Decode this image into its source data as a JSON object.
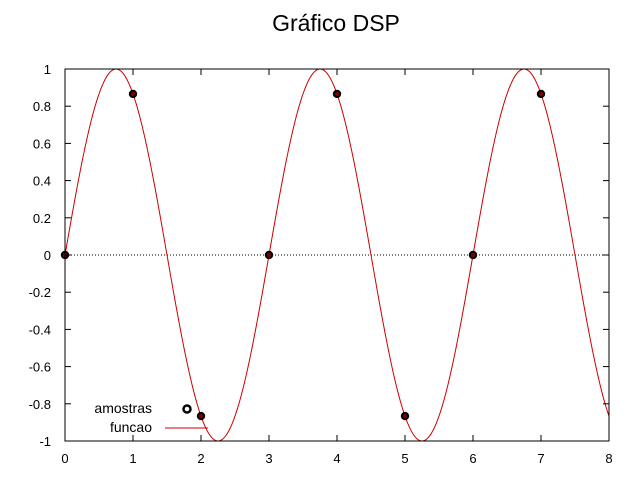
{
  "chart_data": {
    "type": "line",
    "title": "Gráfico DSP",
    "xlabel": "",
    "ylabel": "",
    "xlim": [
      0,
      8
    ],
    "ylim": [
      -1,
      1
    ],
    "x_ticks": [
      "0",
      "1",
      "2",
      "3",
      "4",
      "5",
      "6",
      "7",
      "8"
    ],
    "y_ticks": [
      "1",
      "0.8",
      "0.6",
      "0.4",
      "0.2",
      "0",
      "-0.2",
      "-0.4",
      "-0.6",
      "-0.8",
      "-1"
    ],
    "grid": false,
    "zero_line": true,
    "legend_position": "bottom-left",
    "series": [
      {
        "name": "amostras",
        "kind": "points",
        "color": "#000000",
        "x": [
          0,
          1,
          2,
          3,
          4,
          5,
          6,
          7
        ],
        "y": [
          0,
          0.866,
          -0.866,
          0,
          0.866,
          -0.866,
          0,
          0.866
        ]
      },
      {
        "name": "funcao",
        "kind": "line",
        "color": "#cc0000",
        "function": "sin(2*pi*x/3)",
        "x_range": [
          0,
          8
        ]
      }
    ]
  }
}
